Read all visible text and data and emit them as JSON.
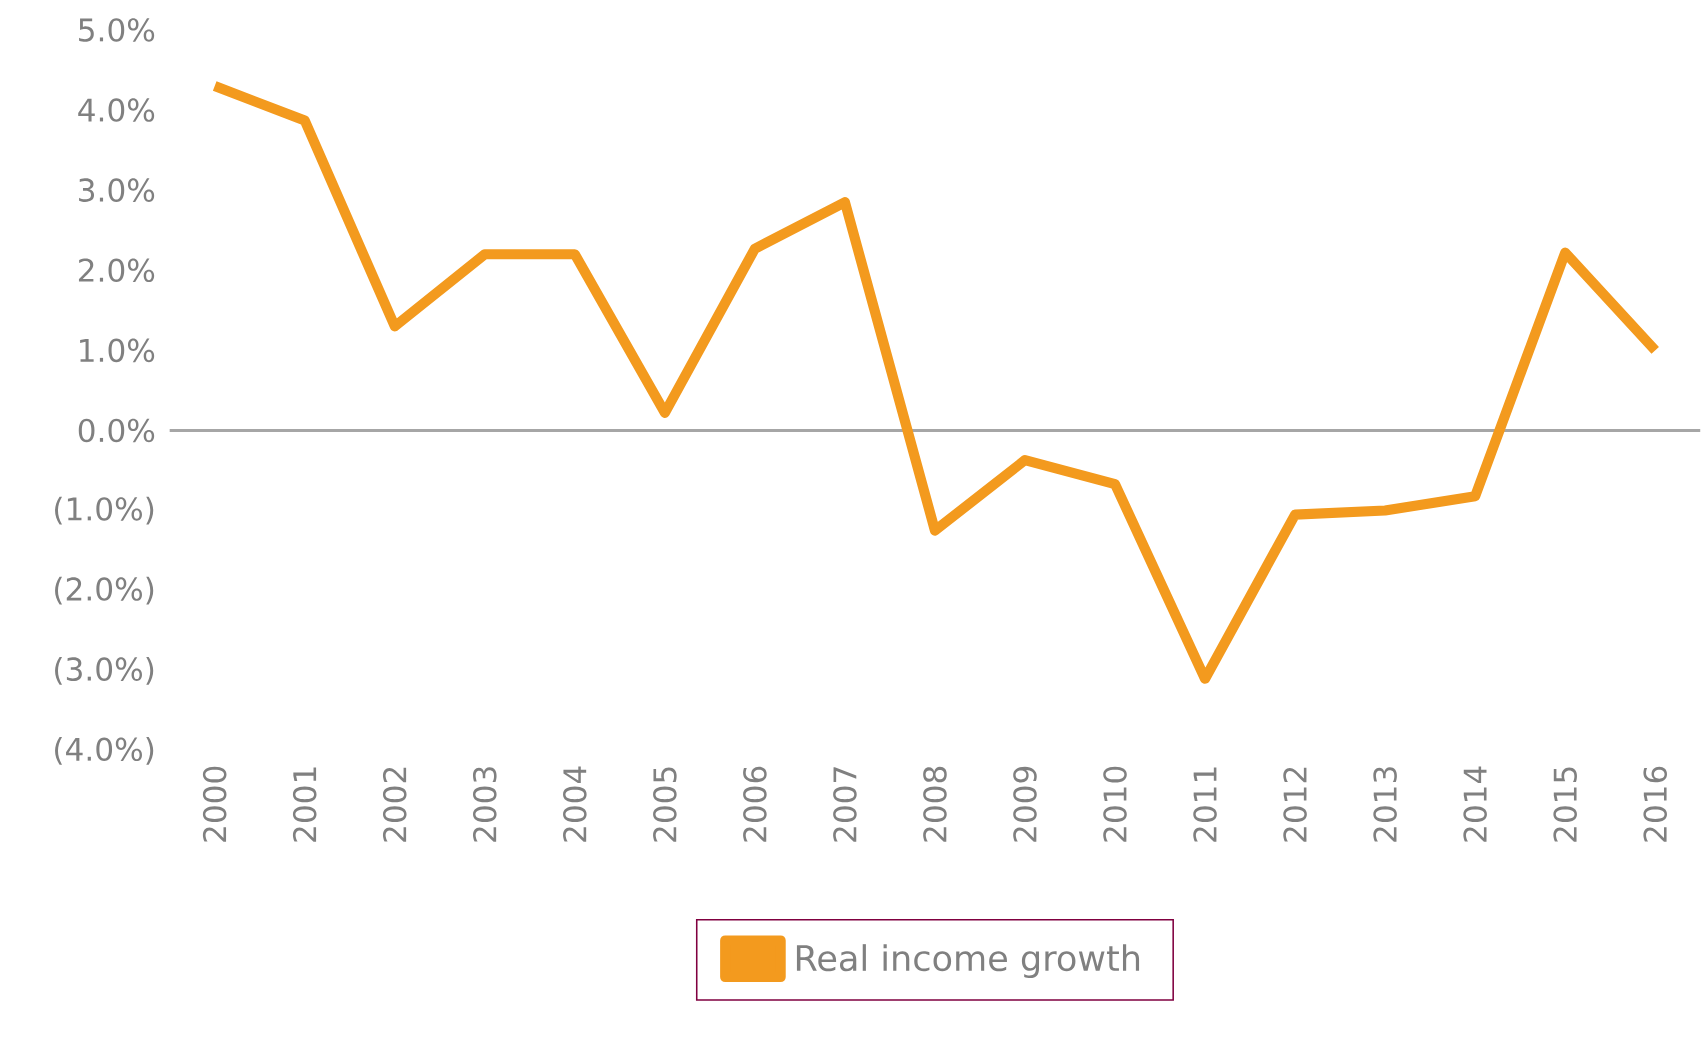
{
  "chart_data": {
    "type": "line",
    "categories": [
      "2000",
      "2001",
      "2002",
      "2003",
      "2004",
      "2005",
      "2006",
      "2007",
      "2008",
      "2009",
      "2010",
      "2011",
      "2012",
      "2013",
      "2014",
      "2015",
      "2016"
    ],
    "series": [
      {
        "name": "Real income growth",
        "color": "#f39a1e",
        "values": [
          4.3,
          3.87,
          1.3,
          2.2,
          2.2,
          0.22,
          2.27,
          2.85,
          -1.25,
          -0.37,
          -0.67,
          -3.1,
          -1.05,
          -1.0,
          -0.82,
          2.22,
          1.0
        ]
      }
    ],
    "ylim": [
      -4,
      5
    ],
    "yticks": [
      {
        "value": 5,
        "label": "5.0%"
      },
      {
        "value": 4,
        "label": "4.0%"
      },
      {
        "value": 3,
        "label": "3.0%"
      },
      {
        "value": 2,
        "label": "2.0%"
      },
      {
        "value": 1,
        "label": "1.0%"
      },
      {
        "value": 0,
        "label": "0.0%"
      },
      {
        "value": -1,
        "label": "(1.0%)"
      },
      {
        "value": -2,
        "label": "(2.0%)"
      },
      {
        "value": -3,
        "label": "(3.0%)"
      },
      {
        "value": -4,
        "label": "(4.0%)"
      }
    ],
    "ref_lines": [
      {
        "axis": "y",
        "value": 0,
        "color": "#a6a6a6"
      }
    ],
    "legend": "bottom",
    "marker": "none",
    "line_style": "solid",
    "grid": false
  }
}
